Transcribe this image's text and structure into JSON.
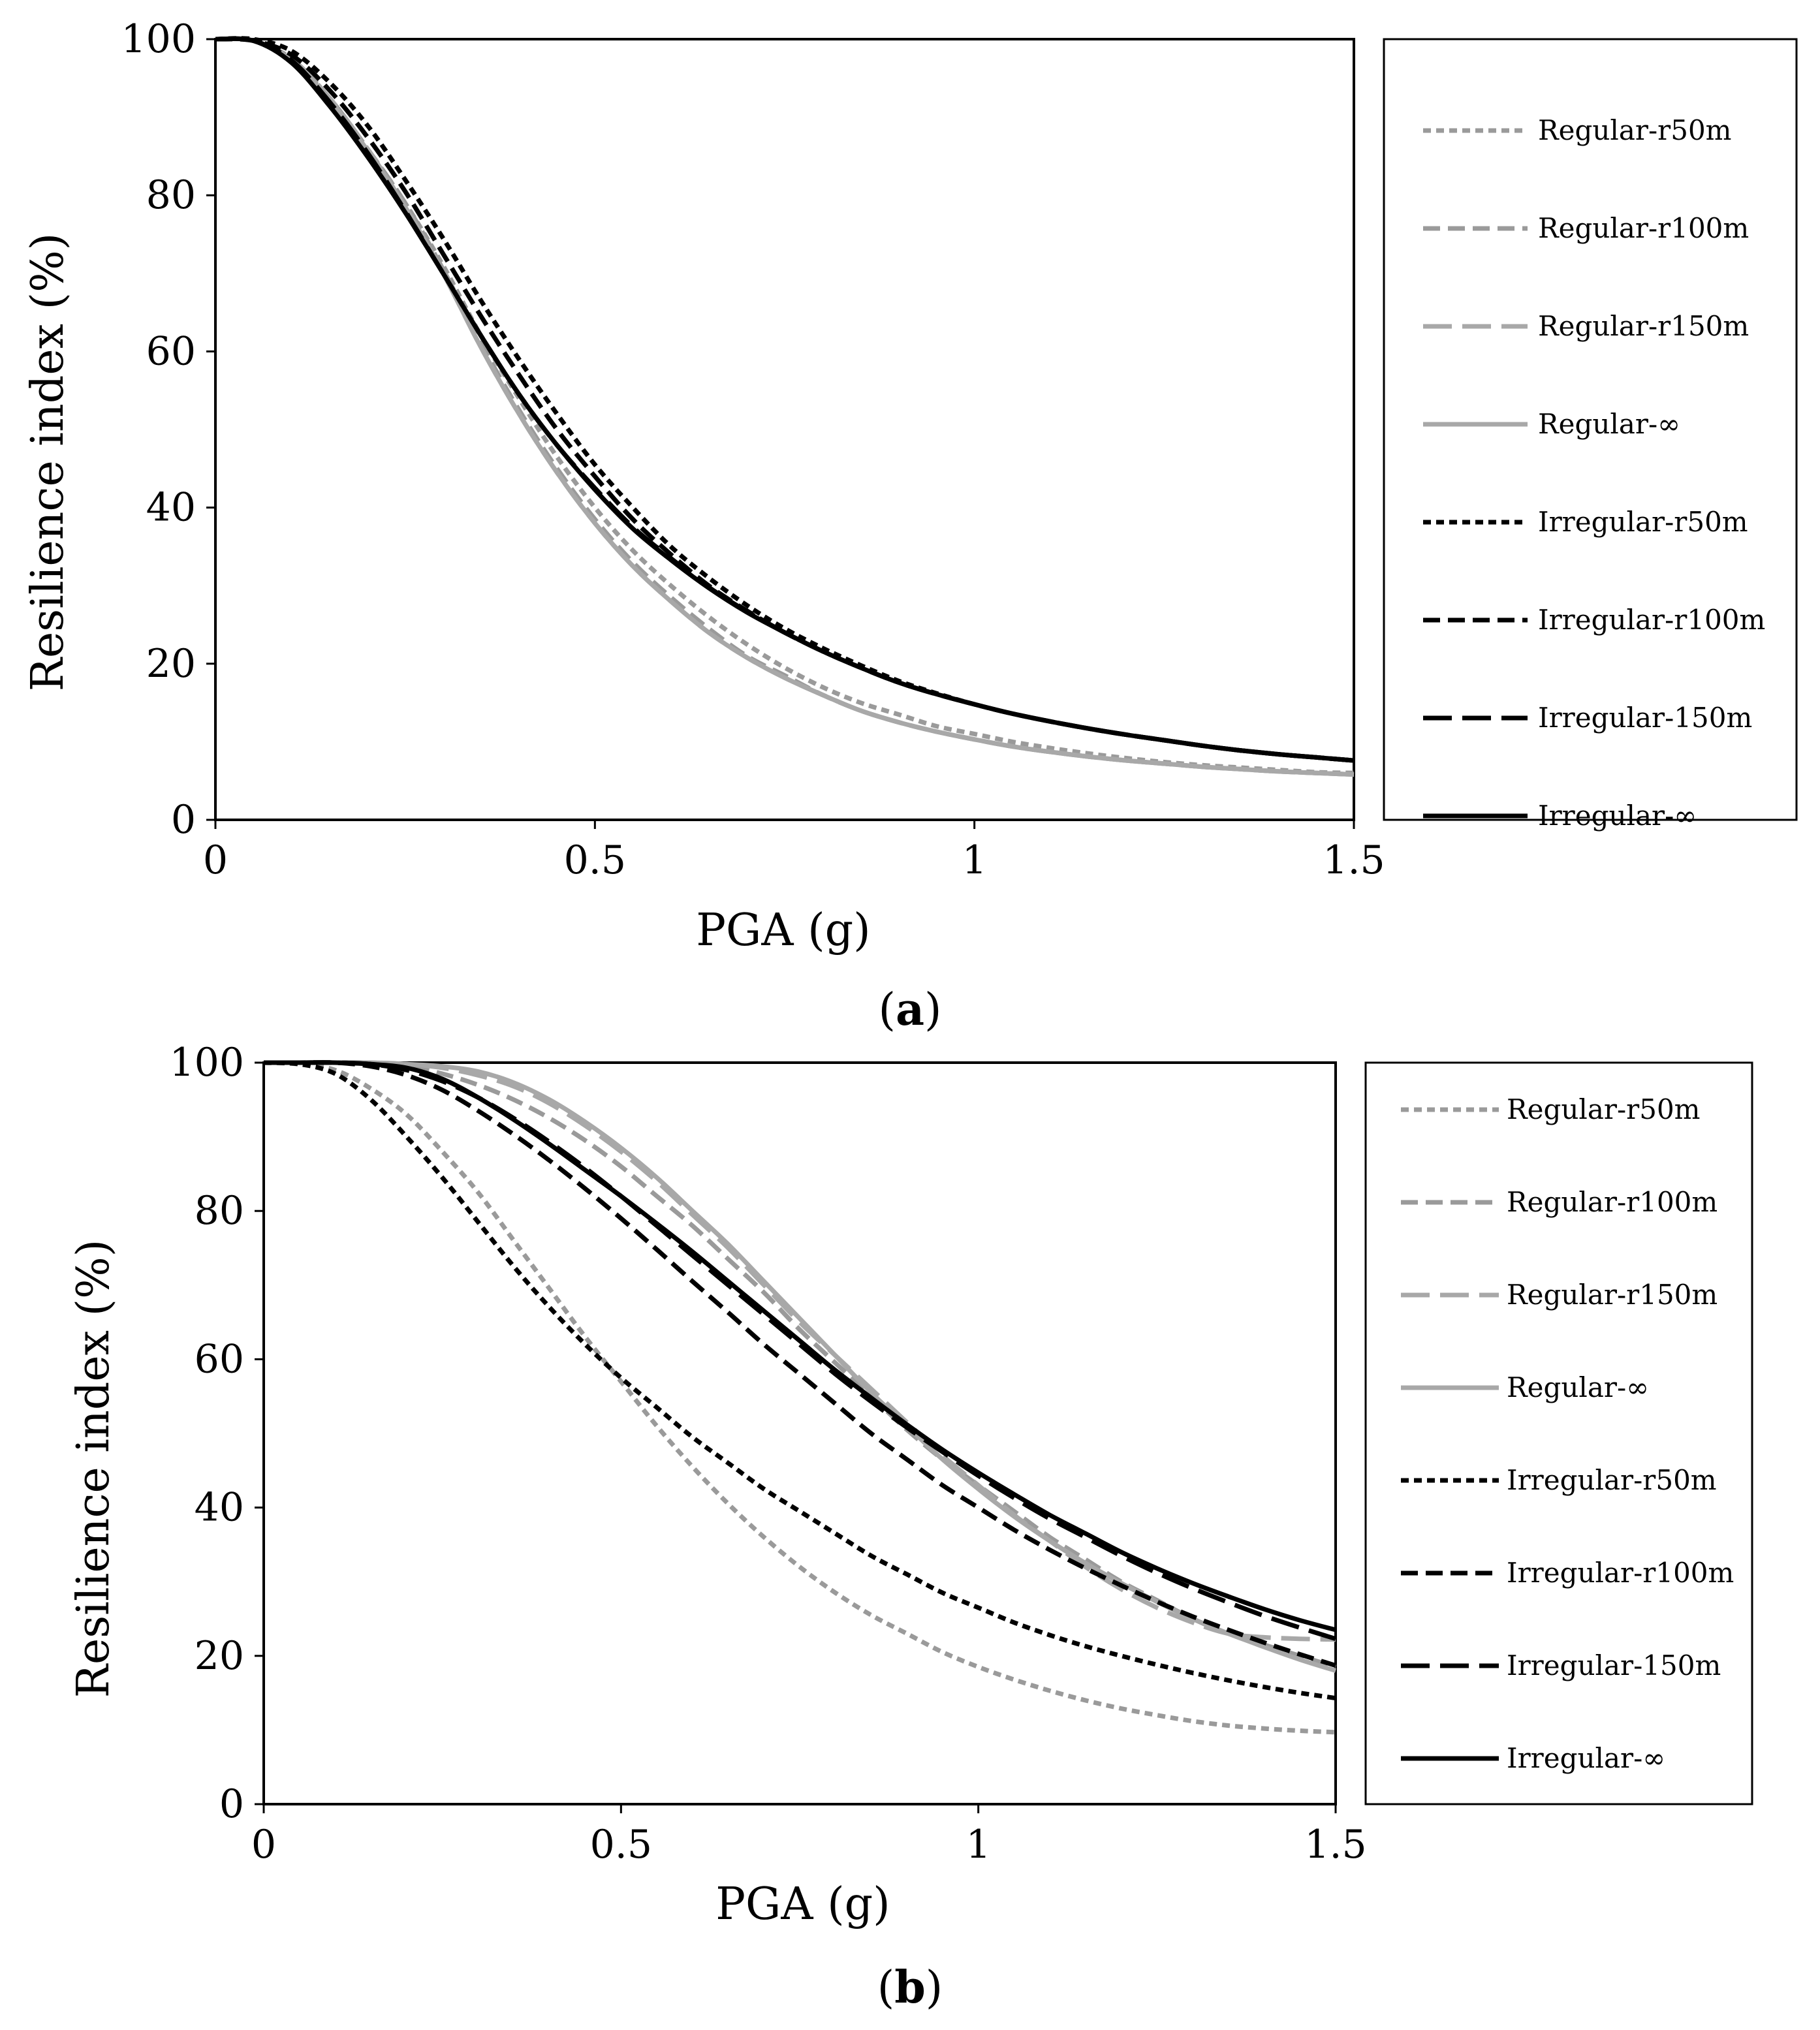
{
  "chart_data": [
    {
      "type": "line",
      "panel_label": "a",
      "xlabel": "PGA (g)",
      "ylabel": "Resilience index (%)",
      "xlim": [
        0,
        1.5
      ],
      "ylim": [
        0,
        100
      ],
      "xticks": [
        0,
        0.5,
        1,
        1.5
      ],
      "xtick_labels": [
        "0",
        "0.5",
        "1",
        "1.5"
      ],
      "yticks": [
        0,
        20,
        40,
        60,
        80,
        100
      ],
      "ytick_labels": [
        "0",
        "20",
        "40",
        "60",
        "80",
        "100"
      ],
      "grid": false,
      "legend_position": "right",
      "x": [
        0,
        0.05,
        0.1,
        0.15,
        0.2,
        0.25,
        0.3,
        0.35,
        0.4,
        0.45,
        0.5,
        0.55,
        0.6,
        0.65,
        0.7,
        0.75,
        0.8,
        0.85,
        0.9,
        0.95,
        1.0,
        1.05,
        1.1,
        1.15,
        1.2,
        1.25,
        1.3,
        1.35,
        1.4,
        1.45,
        1.5
      ],
      "series": [
        {
          "name": "Regular-r50m",
          "color": "#9a9a9a",
          "dash": "short",
          "values": [
            100,
            99.8,
            97.5,
            92.5,
            86,
            79,
            71,
            62,
            54,
            46.5,
            40,
            34.5,
            30,
            26,
            22.5,
            19.5,
            17,
            15,
            13.5,
            12,
            11,
            10,
            9.2,
            8.5,
            7.9,
            7.4,
            7,
            6.7,
            6.4,
            6.1,
            6
          ]
        },
        {
          "name": "Regular-r100m",
          "color": "#9a9a9a",
          "dash": "medium",
          "values": [
            100,
            99.8,
            97.5,
            92.5,
            86,
            79,
            70.5,
            61,
            52.5,
            45,
            38.5,
            33,
            28.5,
            24.5,
            21,
            18.5,
            16,
            14,
            12.5,
            11.3,
            10.3,
            9.4,
            8.7,
            8.1,
            7.6,
            7.2,
            6.8,
            6.5,
            6.2,
            6,
            5.8
          ]
        },
        {
          "name": "Regular-r150m",
          "color": "#a8a8a8",
          "dash": "long",
          "values": [
            100,
            99.8,
            97.5,
            92.5,
            86,
            78.5,
            70,
            60.5,
            52,
            44.5,
            38,
            32.5,
            28,
            24,
            20.8,
            18.2,
            16,
            14,
            12.5,
            11.3,
            10.3,
            9.4,
            8.7,
            8.1,
            7.6,
            7.2,
            6.8,
            6.5,
            6.2,
            6,
            5.8
          ]
        },
        {
          "name": "Regular-∞",
          "color": "#a8a8a8",
          "dash": "solid",
          "values": [
            100,
            99.8,
            97.3,
            92.3,
            85.8,
            78.5,
            70,
            60.5,
            52,
            44.5,
            38,
            32.5,
            28,
            24,
            20.8,
            18.2,
            16,
            14,
            12.5,
            11.3,
            10.3,
            9.4,
            8.7,
            8.1,
            7.6,
            7.2,
            6.8,
            6.5,
            6.2,
            6,
            5.8
          ]
        },
        {
          "name": "Irregular-r50m",
          "color": "#000000",
          "dash": "short",
          "values": [
            100,
            100,
            98.5,
            94.5,
            89,
            82,
            74.5,
            66.5,
            59,
            52,
            45.5,
            40,
            35,
            31,
            27.5,
            24.5,
            22,
            19.8,
            17.8,
            16.2,
            14.8,
            13.6,
            12.6,
            11.7,
            10.9,
            10.2,
            9.5,
            8.9,
            8.4,
            8,
            7.6
          ]
        },
        {
          "name": "Irregular-r100m",
          "color": "#000000",
          "dash": "medium",
          "values": [
            100,
            99.8,
            98,
            93.5,
            87.5,
            80.5,
            72.5,
            64.5,
            57,
            50,
            44,
            38.5,
            34,
            30,
            26.8,
            24,
            21.6,
            19.5,
            17.6,
            16.1,
            14.8,
            13.6,
            12.6,
            11.7,
            10.9,
            10.2,
            9.5,
            8.9,
            8.4,
            8,
            7.6
          ]
        },
        {
          "name": "Irregular-150m",
          "color": "#000000",
          "dash": "long",
          "values": [
            100,
            99.8,
            97.3,
            92,
            85.5,
            78,
            70,
            62,
            54.5,
            48,
            42.5,
            37.5,
            33.5,
            29.8,
            26.7,
            24,
            21.6,
            19.5,
            17.6,
            16.1,
            14.8,
            13.6,
            12.6,
            11.7,
            10.9,
            10.2,
            9.5,
            8.9,
            8.4,
            8,
            7.6
          ]
        },
        {
          "name": "Irregular-∞",
          "color": "#000000",
          "dash": "solid",
          "values": [
            100,
            99.8,
            97,
            91.5,
            85,
            77.8,
            70,
            62,
            54.5,
            48,
            42.3,
            37.3,
            33.3,
            29.7,
            26.6,
            24,
            21.6,
            19.5,
            17.6,
            16.1,
            14.8,
            13.6,
            12.6,
            11.7,
            10.9,
            10.2,
            9.5,
            8.9,
            8.4,
            8,
            7.6
          ]
        }
      ]
    },
    {
      "type": "line",
      "panel_label": "b",
      "xlabel": "PGA (g)",
      "ylabel": "Resilience index (%)",
      "xlim": [
        0,
        1.5
      ],
      "ylim": [
        0,
        100
      ],
      "xticks": [
        0,
        0.5,
        1,
        1.5
      ],
      "xtick_labels": [
        "0",
        "0.5",
        "1",
        "1.5"
      ],
      "yticks": [
        0,
        20,
        40,
        60,
        80,
        100
      ],
      "ytick_labels": [
        "0",
        "20",
        "40",
        "60",
        "80",
        "100"
      ],
      "grid": false,
      "legend_position": "right",
      "x": [
        0,
        0.05,
        0.1,
        0.15,
        0.2,
        0.25,
        0.3,
        0.35,
        0.4,
        0.45,
        0.5,
        0.55,
        0.6,
        0.65,
        0.7,
        0.75,
        0.8,
        0.85,
        0.9,
        0.95,
        1.0,
        1.05,
        1.1,
        1.15,
        1.2,
        1.25,
        1.3,
        1.35,
        1.4,
        1.45,
        1.5
      ],
      "series": [
        {
          "name": "Regular-r50m",
          "color": "#9a9a9a",
          "dash": "short",
          "values": [
            100,
            99.8,
            99,
            96.5,
            93,
            88,
            82.5,
            76,
            69.5,
            63,
            57,
            51,
            45.5,
            40.5,
            36,
            32,
            28.5,
            25.5,
            23,
            20.5,
            18.5,
            16.8,
            15.3,
            14,
            12.9,
            12,
            11.2,
            10.6,
            10.2,
            9.9,
            9.7
          ]
        },
        {
          "name": "Regular-r100m",
          "color": "#9a9a9a",
          "dash": "medium",
          "values": [
            100,
            100,
            100,
            99.8,
            99.5,
            98.5,
            97,
            95,
            92.5,
            89.5,
            86,
            82,
            78,
            73.5,
            69,
            64,
            59.5,
            55,
            50.5,
            46.5,
            43,
            39.5,
            36,
            33,
            30,
            27.5,
            25,
            23,
            21.5,
            20,
            18.5
          ]
        },
        {
          "name": "Regular-r150m",
          "color": "#a8a8a8",
          "dash": "long",
          "values": [
            100,
            100,
            100,
            100,
            99.8,
            99.3,
            98.3,
            96.8,
            94.5,
            91.5,
            88,
            84,
            79.5,
            75,
            70,
            65,
            60.5,
            56,
            51.5,
            47,
            43,
            39,
            35.5,
            32,
            29,
            26.5,
            24.5,
            23,
            22.5,
            22.3,
            22.2
          ]
        },
        {
          "name": "Regular-∞",
          "color": "#a8a8a8",
          "dash": "solid",
          "values": [
            100,
            100,
            100,
            100,
            99.8,
            99.5,
            98.8,
            97.3,
            95,
            92,
            88.5,
            84.5,
            80,
            75.5,
            70.5,
            65.5,
            60.5,
            55.5,
            51,
            46.5,
            42.5,
            38.8,
            35.5,
            32.5,
            29.8,
            27.3,
            25,
            23,
            21.2,
            19.5,
            18
          ]
        },
        {
          "name": "Irregular-r50m",
          "color": "#000000",
          "dash": "short",
          "values": [
            100,
            99.8,
            98.5,
            95,
            90,
            84.5,
            78.5,
            72.5,
            67,
            62,
            57.5,
            53.5,
            49.5,
            46,
            42.5,
            39.5,
            36.5,
            33.5,
            31,
            28.5,
            26.5,
            24.5,
            22.8,
            21.3,
            20,
            18.8,
            17.7,
            16.7,
            15.8,
            15,
            14.3
          ]
        },
        {
          "name": "Irregular-r100m",
          "color": "#000000",
          "dash": "medium",
          "values": [
            100,
            100,
            100,
            99.5,
            98.3,
            96.3,
            93.5,
            90.3,
            86.8,
            83,
            79,
            74.8,
            70.5,
            66.3,
            62,
            58,
            54,
            50,
            46.5,
            43,
            40,
            37,
            34.3,
            31.8,
            29.5,
            27.3,
            25.3,
            23.5,
            21.8,
            20.2,
            18.7
          ]
        },
        {
          "name": "Irregular-150m",
          "color": "#000000",
          "dash": "long",
          "values": [
            100,
            100,
            100,
            99.8,
            99,
            97.5,
            95.3,
            92.5,
            89.3,
            85.8,
            82,
            78,
            74,
            70,
            66,
            62,
            58,
            54.3,
            50.8,
            47.5,
            44.3,
            41.3,
            38.5,
            36,
            33.5,
            31.2,
            29.1,
            27.2,
            25.4,
            23.8,
            22.3
          ]
        },
        {
          "name": "Irregular-∞",
          "color": "#000000",
          "dash": "solid",
          "values": [
            100,
            100,
            100,
            99.8,
            99.3,
            97.8,
            95.3,
            92.3,
            89,
            85.5,
            82,
            78.3,
            74.5,
            70.5,
            66.5,
            62.5,
            58.5,
            54.8,
            51.2,
            47.8,
            44.7,
            41.8,
            39,
            36.5,
            34,
            31.8,
            29.8,
            28,
            26.3,
            24.8,
            23.5
          ]
        }
      ]
    }
  ]
}
